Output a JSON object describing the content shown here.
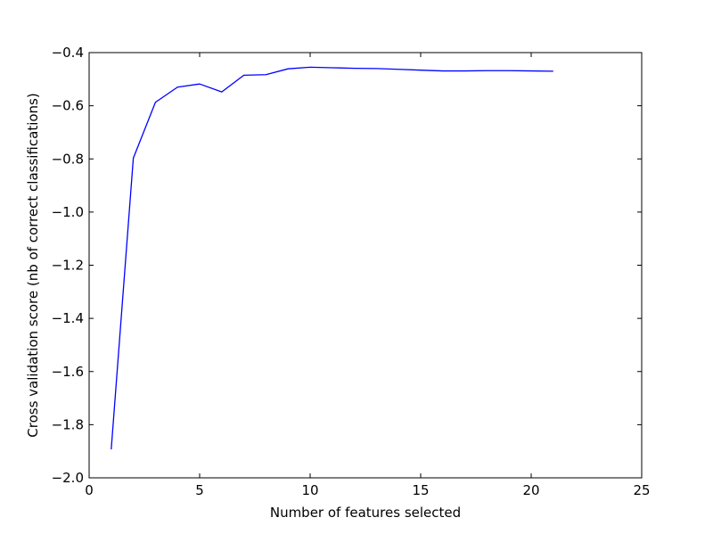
{
  "chart_data": {
    "type": "line",
    "title": "",
    "xlabel": "Number of features selected",
    "ylabel": "Cross validation score (nb of correct classifications)",
    "xlim": [
      0,
      25
    ],
    "ylim": [
      -2.0,
      -0.4
    ],
    "grid": false,
    "legend": "none",
    "series": [
      {
        "color": "#0000ff",
        "x": [
          1,
          2,
          3,
          4,
          5,
          6,
          7,
          8,
          9,
          10,
          11,
          12,
          13,
          14,
          15,
          16,
          17,
          18,
          19,
          20,
          21
        ],
        "y": [
          -1.893,
          -0.797,
          -0.587,
          -0.53,
          -0.518,
          -0.548,
          -0.485,
          -0.483,
          -0.461,
          -0.455,
          -0.457,
          -0.459,
          -0.46,
          -0.463,
          -0.466,
          -0.469,
          -0.469,
          -0.468,
          -0.468,
          -0.469,
          -0.47
        ]
      }
    ],
    "x_ticks": [
      {
        "value": 0,
        "label": "0"
      },
      {
        "value": 5,
        "label": "5"
      },
      {
        "value": 10,
        "label": "10"
      },
      {
        "value": 15,
        "label": "15"
      },
      {
        "value": 20,
        "label": "20"
      },
      {
        "value": 25,
        "label": "25"
      }
    ],
    "y_ticks": [
      {
        "value": -2.0,
        "label": "−2.0"
      },
      {
        "value": -1.8,
        "label": "−1.8"
      },
      {
        "value": -1.6,
        "label": "−1.6"
      },
      {
        "value": -1.4,
        "label": "−1.4"
      },
      {
        "value": -1.2,
        "label": "−1.2"
      },
      {
        "value": -1.0,
        "label": "−1.0"
      },
      {
        "value": -0.8,
        "label": "−0.8"
      },
      {
        "value": -0.6,
        "label": "−0.6"
      },
      {
        "value": -0.4,
        "label": "−0.4"
      }
    ]
  }
}
